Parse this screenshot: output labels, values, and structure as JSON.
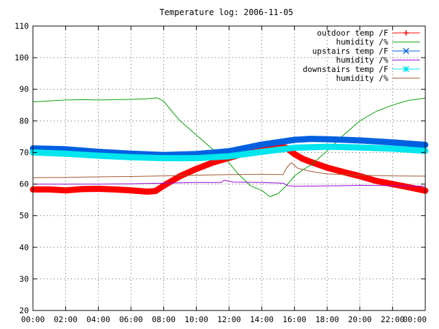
{
  "chart_data": {
    "type": "line",
    "title": "Temperature log: 2006-11-05",
    "xlabel": "",
    "ylabel": "",
    "ylim": [
      20,
      110
    ],
    "yticks": [
      20,
      30,
      40,
      50,
      60,
      70,
      80,
      90,
      100,
      110
    ],
    "xlim": [
      0,
      24
    ],
    "xticks": [
      "00:00",
      "02:00",
      "04:00",
      "06:00",
      "08:00",
      "10:00",
      "12:00",
      "14:00",
      "16:00",
      "18:00",
      "20:00",
      "22:00",
      "00:00"
    ],
    "grid": true,
    "legend_position": "top-right",
    "series": [
      {
        "name": "outdoor temp /F",
        "color": "#ff0000",
        "marker": "plus",
        "thick": true,
        "x": [
          0,
          1,
          2,
          3,
          4,
          5,
          6,
          7,
          7.5,
          8,
          8.5,
          9,
          10,
          11,
          12,
          13,
          14,
          15,
          15.5,
          16,
          16.5,
          17,
          18,
          19,
          20,
          21,
          22,
          23,
          24
        ],
        "y": [
          58.3,
          58.3,
          58.0,
          58.4,
          58.5,
          58.3,
          58.0,
          57.6,
          57.8,
          59.5,
          61.0,
          62.5,
          64.8,
          66.8,
          68.3,
          69.8,
          71.0,
          71.8,
          71.5,
          69.5,
          68.0,
          67.0,
          65.2,
          63.8,
          62.5,
          61.0,
          60.0,
          59.0,
          57.9
        ]
      },
      {
        "name": "humidity /%",
        "color": "#00a000",
        "marker": "none",
        "thick": false,
        "x": [
          0,
          1,
          2,
          3,
          4,
          5,
          6,
          7,
          7.6,
          8,
          8.5,
          9,
          10,
          11,
          11.8,
          12.5,
          13.3,
          14,
          14.5,
          15,
          15.5,
          16,
          16.5,
          17,
          18,
          19,
          20,
          21,
          22,
          23,
          24
        ],
        "y": [
          86.0,
          86.3,
          86.6,
          86.7,
          86.6,
          86.7,
          86.8,
          87.0,
          87.3,
          86.2,
          83.0,
          80.0,
          75.5,
          71.0,
          68.0,
          63.5,
          59.5,
          58.0,
          56.0,
          57.0,
          59.5,
          62.5,
          64.5,
          66.0,
          70.5,
          75.5,
          80.0,
          83.0,
          85.0,
          86.5,
          87.2
        ]
      },
      {
        "name": "upstairs temp /F",
        "color": "#0060e0",
        "marker": "cross",
        "thick": true,
        "x": [
          0,
          2,
          4,
          6,
          8,
          10,
          12,
          14,
          16,
          17,
          18,
          20,
          22,
          24
        ],
        "y": [
          71.3,
          71.0,
          70.2,
          69.6,
          69.2,
          69.5,
          70.4,
          72.5,
          74.0,
          74.3,
          74.2,
          73.8,
          73.2,
          72.4
        ]
      },
      {
        "name": "humidity /%",
        "color": "#9400d3",
        "marker": "none",
        "thick": false,
        "x": [
          0,
          2,
          4,
          6,
          8,
          10,
          11.5,
          11.7,
          12.3,
          14,
          15.3,
          15.6,
          16,
          18,
          20,
          22,
          24
        ],
        "y": [
          60.0,
          60.0,
          60.0,
          60.1,
          60.3,
          60.5,
          60.5,
          61.2,
          60.6,
          60.5,
          60.3,
          59.5,
          59.3,
          59.4,
          59.6,
          59.5,
          59.3
        ]
      },
      {
        "name": "downstairs temp /F",
        "color": "#00e5ee",
        "marker": "star",
        "thick": true,
        "x": [
          0,
          2,
          4,
          6,
          8,
          10,
          12,
          14,
          16,
          18,
          20,
          22,
          24
        ],
        "y": [
          70.0,
          69.6,
          69.0,
          68.5,
          68.2,
          68.2,
          68.8,
          70.2,
          71.5,
          71.8,
          71.6,
          71.2,
          70.5
        ]
      },
      {
        "name": "humidity /%",
        "color": "#a0522d",
        "marker": "none",
        "thick": false,
        "x": [
          0,
          2,
          4,
          6,
          8,
          10,
          12,
          14,
          15.3,
          15.5,
          15.8,
          16.2,
          17,
          18,
          20,
          22,
          24
        ],
        "y": [
          62.0,
          62.1,
          62.3,
          62.4,
          62.6,
          62.8,
          63.0,
          63.1,
          63.0,
          65.0,
          66.8,
          65.0,
          64.0,
          63.2,
          62.8,
          62.6,
          62.5
        ]
      }
    ]
  }
}
